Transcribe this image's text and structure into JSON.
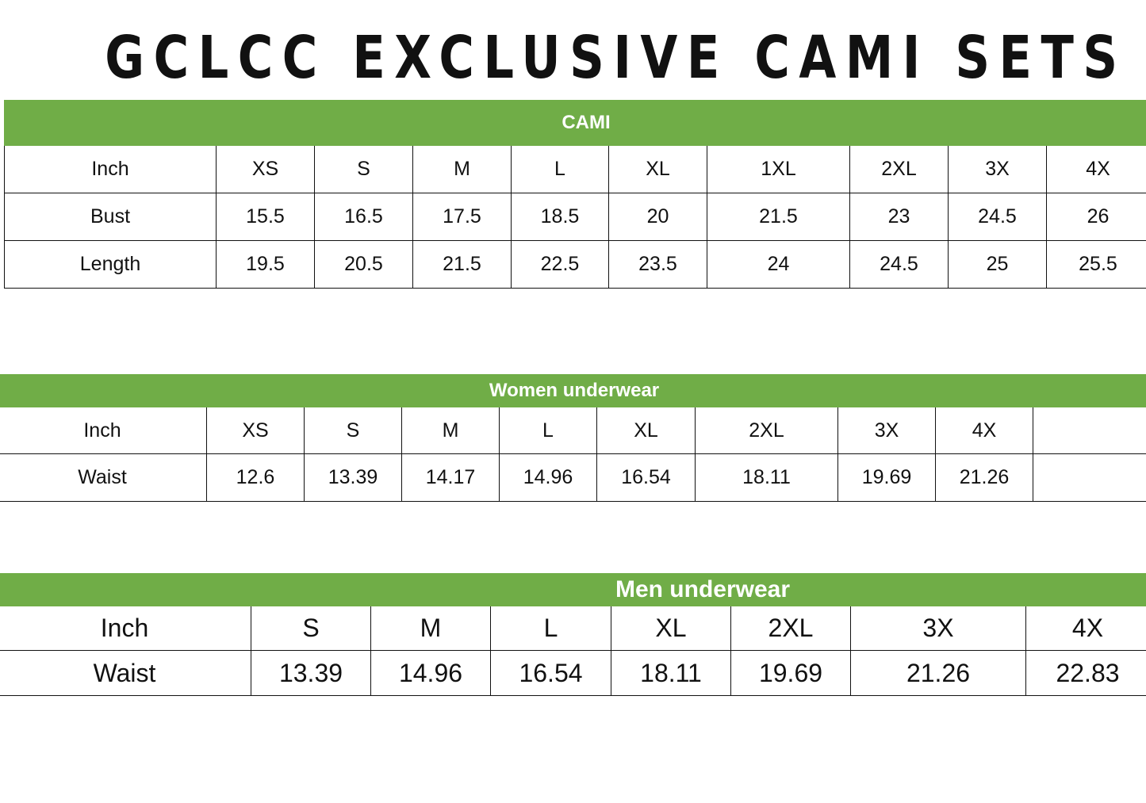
{
  "title": "GCLCC EXCLUSIVE CAMI SETS",
  "colors": {
    "header_green": "#70ad47",
    "header_text": "#ffffff",
    "border": "#111111"
  },
  "tables": [
    {
      "title": "CAMI",
      "rows": [
        [
          "Inch",
          "XS",
          "S",
          "M",
          "L",
          "XL",
          "1XL",
          "2XL",
          "3X",
          "4X"
        ],
        [
          "Bust",
          "15.5",
          "16.5",
          "17.5",
          "18.5",
          "20",
          "21.5",
          "23",
          "24.5",
          "26"
        ],
        [
          "Length",
          "19.5",
          "20.5",
          "21.5",
          "22.5",
          "23.5",
          "24",
          "24.5",
          "25",
          "25.5"
        ]
      ]
    },
    {
      "title": "Women underwear",
      "rows": [
        [
          "Inch",
          "XS",
          "S",
          "M",
          "L",
          "XL",
          "2XL",
          "3X",
          "4X",
          ""
        ],
        [
          "Waist",
          "12.6",
          "13.39",
          "14.17",
          "14.96",
          "16.54",
          "18.11",
          "19.69",
          "21.26",
          ""
        ]
      ]
    },
    {
      "title": "Men underwear",
      "rows": [
        [
          "Inch",
          "S",
          "M",
          "L",
          "XL",
          "2XL",
          "3X",
          "4X"
        ],
        [
          "Waist",
          "13.39",
          "14.96",
          "16.54",
          "18.11",
          "19.69",
          "21.26",
          "22.83"
        ]
      ]
    }
  ]
}
